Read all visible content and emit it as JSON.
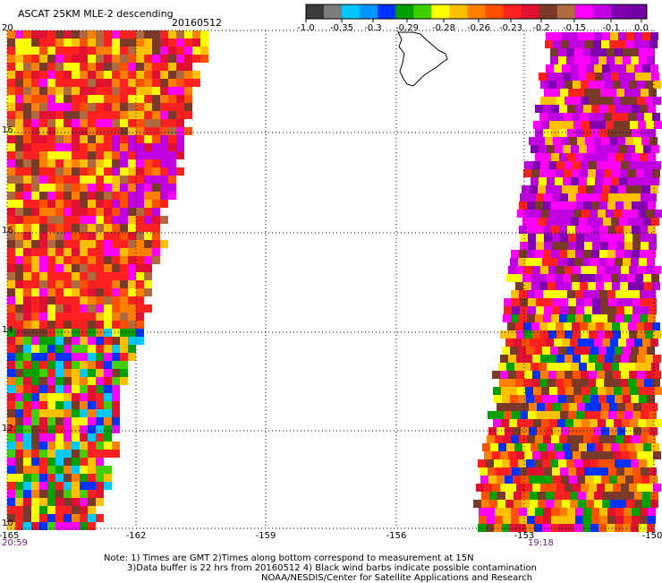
{
  "header": {
    "title": "ASCAT 25KM MLE-2 descending",
    "date": "20160512"
  },
  "colorbar": {
    "ticks": [
      "-1.0",
      "-0.35",
      "-0.3",
      "-0.29",
      "-0.28",
      "-0.26",
      "-0.23",
      "-0.2",
      "-0.15",
      "-0.1",
      "0.0"
    ],
    "colors": [
      "#3a3a3a",
      "#7d7d7d",
      "#00c8ff",
      "#0096ff",
      "#0032ff",
      "#00a000",
      "#40d000",
      "#ffff00",
      "#ffc000",
      "#ff8000",
      "#ff5000",
      "#ff2020",
      "#e01030",
      "#7a3a2a",
      "#b06a40",
      "#ff00ff",
      "#c000e0",
      "#8000b0",
      "#7000a0"
    ]
  },
  "axes": {
    "lat_labels": [
      "20",
      "16",
      "16",
      "14",
      "12",
      "10"
    ],
    "lon_labels": [
      "-165",
      "-162",
      "-159",
      "-156",
      "-153",
      "-150"
    ]
  },
  "times": {
    "left": "20:59",
    "right": "19:18"
  },
  "notes": {
    "line1": "Note: 1) Times are GMT 2)Times along bottom correspond to measurement at 15N",
    "line2": "3)Data buffer is 22 hrs from 20160512 4) Black wind barbs indicate possible contamination",
    "line3": "NOAA/NESDIS/Center for Satellite Applications and Research"
  },
  "map_palette": {
    "mixed": [
      "#ff2020",
      "#ff2020",
      "#ff2020",
      "#ff8000",
      "#ffff00",
      "#ffc000",
      "#ff00ff",
      "#e01030",
      "#b06a40",
      "#7a3a2a",
      "#ff5000"
    ],
    "west_south": [
      "#ff2020",
      "#ffff00",
      "#ffc000",
      "#ff8000",
      "#ff00ff",
      "#40d000",
      "#00a000",
      "#0032ff",
      "#7a3a2a",
      "#e01030",
      "#00c8ff"
    ],
    "east_north": [
      "#c000e0",
      "#c000e0",
      "#c000e0",
      "#ff00ff",
      "#ff00ff",
      "#ffff00",
      "#ffc000",
      "#7a3a2a",
      "#ff2020",
      "#8000b0"
    ],
    "east_south": [
      "#ff2020",
      "#ffff00",
      "#ffc000",
      "#ff8000",
      "#ff00ff",
      "#00a000",
      "#0032ff",
      "#7a3a2a",
      "#e01030",
      "#ff5000"
    ]
  }
}
